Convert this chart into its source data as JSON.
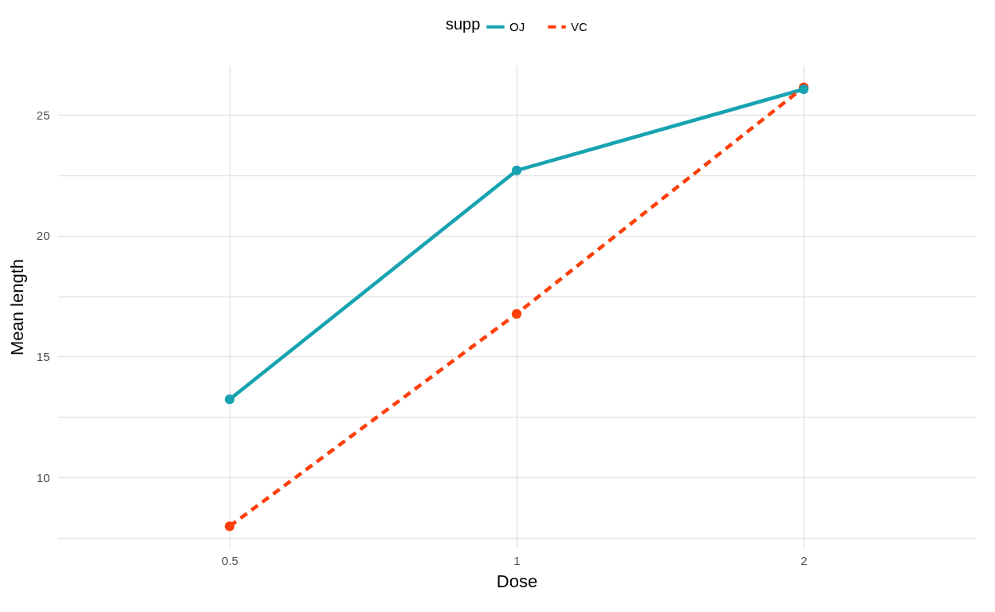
{
  "chart_data": {
    "type": "line",
    "xlabel": "Dose",
    "ylabel": "Mean length",
    "legend_title": "supp",
    "categories": [
      "0.5",
      "1",
      "2"
    ],
    "series": [
      {
        "name": "OJ",
        "color": "#17a3b1",
        "line_style": "solid",
        "values": [
          13.23,
          22.7,
          26.06
        ]
      },
      {
        "name": "VC",
        "color": "#fc3f0b",
        "line_style": "dashed",
        "values": [
          7.98,
          16.77,
          26.14
        ]
      }
    ],
    "ylim": [
      7.07,
      27.05
    ],
    "yticks": [
      {
        "value": 7.5,
        "label": null
      },
      10,
      {
        "value": 12.5,
        "label": null
      },
      15,
      {
        "value": 17.5,
        "label": null
      },
      20,
      {
        "value": 22.5,
        "label": null
      },
      25
    ],
    "grid": true,
    "legend": "top",
    "marker": "circle"
  }
}
